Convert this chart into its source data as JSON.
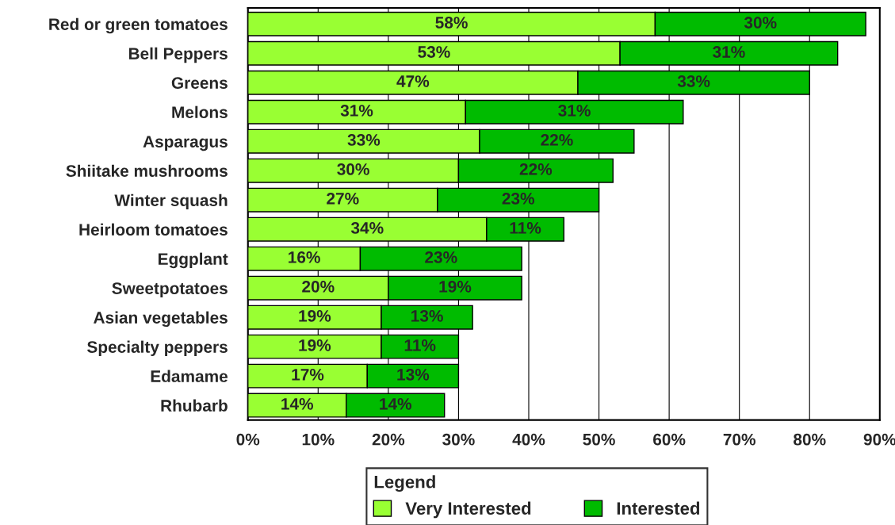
{
  "chart_data": {
    "type": "bar",
    "orientation": "horizontal",
    "stacked": true,
    "categories": [
      "Red or green tomatoes",
      "Bell Peppers",
      "Greens",
      "Melons",
      "Asparagus",
      "Shiitake mushrooms",
      "Winter squash",
      "Heirloom tomatoes",
      "Eggplant",
      "Sweetpotatoes",
      "Asian vegetables",
      "Specialty peppers",
      "Edamame",
      "Rhubarb"
    ],
    "series": [
      {
        "name": "Very Interested",
        "color": "#99ff33",
        "values": [
          58,
          53,
          47,
          31,
          33,
          30,
          27,
          34,
          16,
          20,
          19,
          19,
          17,
          14
        ],
        "value_labels": [
          "58%",
          "53%",
          "47%",
          "31%",
          "33%",
          "30%",
          "27%",
          "34%",
          "16%",
          "20%",
          "19%",
          "19%",
          "17%",
          "14%"
        ]
      },
      {
        "name": "Interested",
        "color": "#00bb00",
        "values": [
          30,
          31,
          33,
          31,
          22,
          22,
          23,
          11,
          23,
          19,
          13,
          11,
          13,
          14
        ],
        "value_labels": [
          "30%",
          "31%",
          "33%",
          "31%",
          "22%",
          "22%",
          "23%",
          "11%",
          "23%",
          "19%",
          "13%",
          "11%",
          "13%",
          "14%"
        ]
      }
    ],
    "xlim": [
      0,
      90
    ],
    "xticks": [
      {
        "value": 0,
        "label": "0%"
      },
      {
        "value": 10,
        "label": "10%"
      },
      {
        "value": 20,
        "label": "20%"
      },
      {
        "value": 30,
        "label": "30%"
      },
      {
        "value": 40,
        "label": "40%"
      },
      {
        "value": 50,
        "label": "50%"
      },
      {
        "value": 60,
        "label": "60%"
      },
      {
        "value": 70,
        "label": "70%"
      },
      {
        "value": 80,
        "label": "80%"
      },
      {
        "value": 90,
        "label": "90%"
      }
    ],
    "grid": "x",
    "legend": "bottom",
    "legend_title": "Legend"
  }
}
